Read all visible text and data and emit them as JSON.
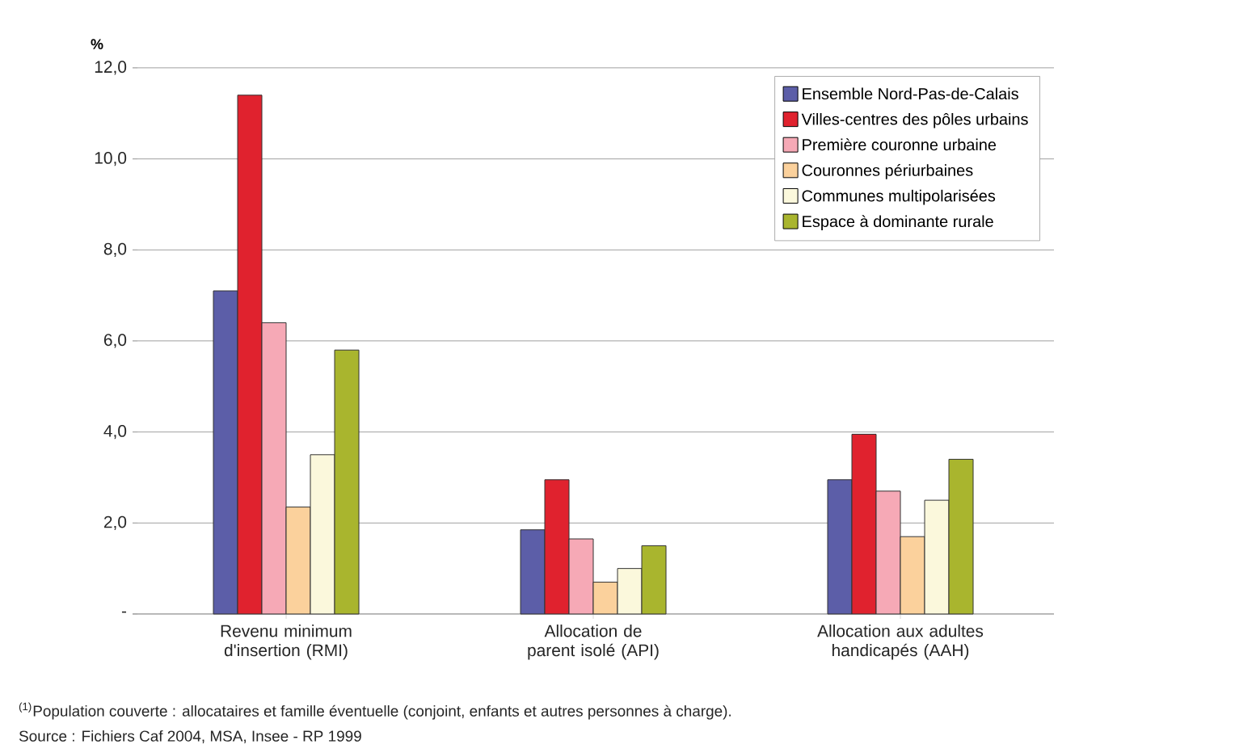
{
  "chart_data": {
    "type": "bar",
    "ylabel": "%",
    "categories": [
      "Revenu minimum d'insertion (RMI)",
      "Allocation de parent isolé (API)",
      "Allocation aux adultes handicapés (AAH)"
    ],
    "series": [
      {
        "name": "Ensemble Nord-Pas-de-Calais",
        "color": "#5c5ea8",
        "values": [
          7.1,
          1.85,
          2.95
        ]
      },
      {
        "name": "Villes-centres des pôles urbains",
        "color": "#e0222e",
        "values": [
          11.4,
          2.95,
          3.95
        ]
      },
      {
        "name": "Première couronne urbaine",
        "color": "#f6a9b6",
        "values": [
          6.4,
          1.65,
          2.7
        ]
      },
      {
        "name": "Couronnes périurbaines",
        "color": "#fbd19c",
        "values": [
          2.35,
          0.7,
          1.7
        ]
      },
      {
        "name": "Communes multipolarisées",
        "color": "#fbf8dc",
        "values": [
          3.5,
          1.0,
          2.5
        ]
      },
      {
        "name": "Espace à dominante rurale",
        "color": "#a9b52e",
        "values": [
          5.8,
          1.5,
          3.4
        ]
      }
    ],
    "ylim": [
      0,
      12
    ],
    "yticks": [
      {
        "value": 0,
        "label": "-"
      },
      {
        "value": 2,
        "label": "2,0"
      },
      {
        "value": 4,
        "label": "4,0"
      },
      {
        "value": 6,
        "label": "6,0"
      },
      {
        "value": 8,
        "label": "8,0"
      },
      {
        "value": 10,
        "label": "10,0"
      },
      {
        "value": 12,
        "label": "12,0"
      }
    ],
    "grid": "y",
    "legend": "top right",
    "annotations": [
      "$^{(1)}$Population couverte : allocataires et famille éventuelle (conjoint, enfants et autres personnes à charge).",
      "Source : Fichiers Caf 2004, MSA, Insee - RP 1999"
    ]
  }
}
